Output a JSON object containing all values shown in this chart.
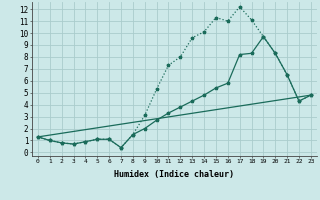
{
  "xlabel": "Humidex (Indice chaleur)",
  "ylabel": "",
  "bg_color": "#cce8e8",
  "grid_color": "#aacccc",
  "line_color": "#1a6b5a",
  "xlim": [
    -0.5,
    23.5
  ],
  "ylim": [
    -0.3,
    12.6
  ],
  "xticks": [
    0,
    1,
    2,
    3,
    4,
    5,
    6,
    7,
    8,
    9,
    10,
    11,
    12,
    13,
    14,
    15,
    16,
    17,
    18,
    19,
    20,
    21,
    22,
    23
  ],
  "yticks": [
    0,
    1,
    2,
    3,
    4,
    5,
    6,
    7,
    8,
    9,
    10,
    11,
    12
  ],
  "line1_x": [
    0,
    1,
    2,
    3,
    4,
    5,
    6,
    7,
    8,
    9,
    10,
    11,
    12,
    13,
    14,
    15,
    16,
    17,
    18,
    19,
    20,
    21,
    22,
    23
  ],
  "line1_y": [
    1.3,
    1.0,
    0.8,
    0.7,
    0.9,
    1.1,
    1.1,
    0.4,
    1.5,
    3.1,
    5.3,
    7.3,
    8.0,
    9.6,
    10.1,
    11.3,
    11.0,
    12.2,
    11.1,
    9.7,
    8.3,
    6.5,
    4.3,
    4.8
  ],
  "line2_x": [
    0,
    1,
    2,
    3,
    4,
    5,
    6,
    7,
    8,
    9,
    10,
    11,
    12,
    13,
    14,
    15,
    16,
    17,
    18,
    19,
    20,
    21,
    22,
    23
  ],
  "line2_y": [
    1.3,
    1.0,
    0.8,
    0.7,
    0.9,
    1.1,
    1.1,
    0.4,
    1.5,
    2.0,
    2.7,
    3.3,
    3.8,
    4.3,
    4.8,
    5.4,
    5.8,
    8.2,
    8.3,
    9.7,
    8.3,
    6.5,
    4.3,
    4.8
  ],
  "line3_x": [
    0,
    23
  ],
  "line3_y": [
    1.3,
    4.8
  ]
}
